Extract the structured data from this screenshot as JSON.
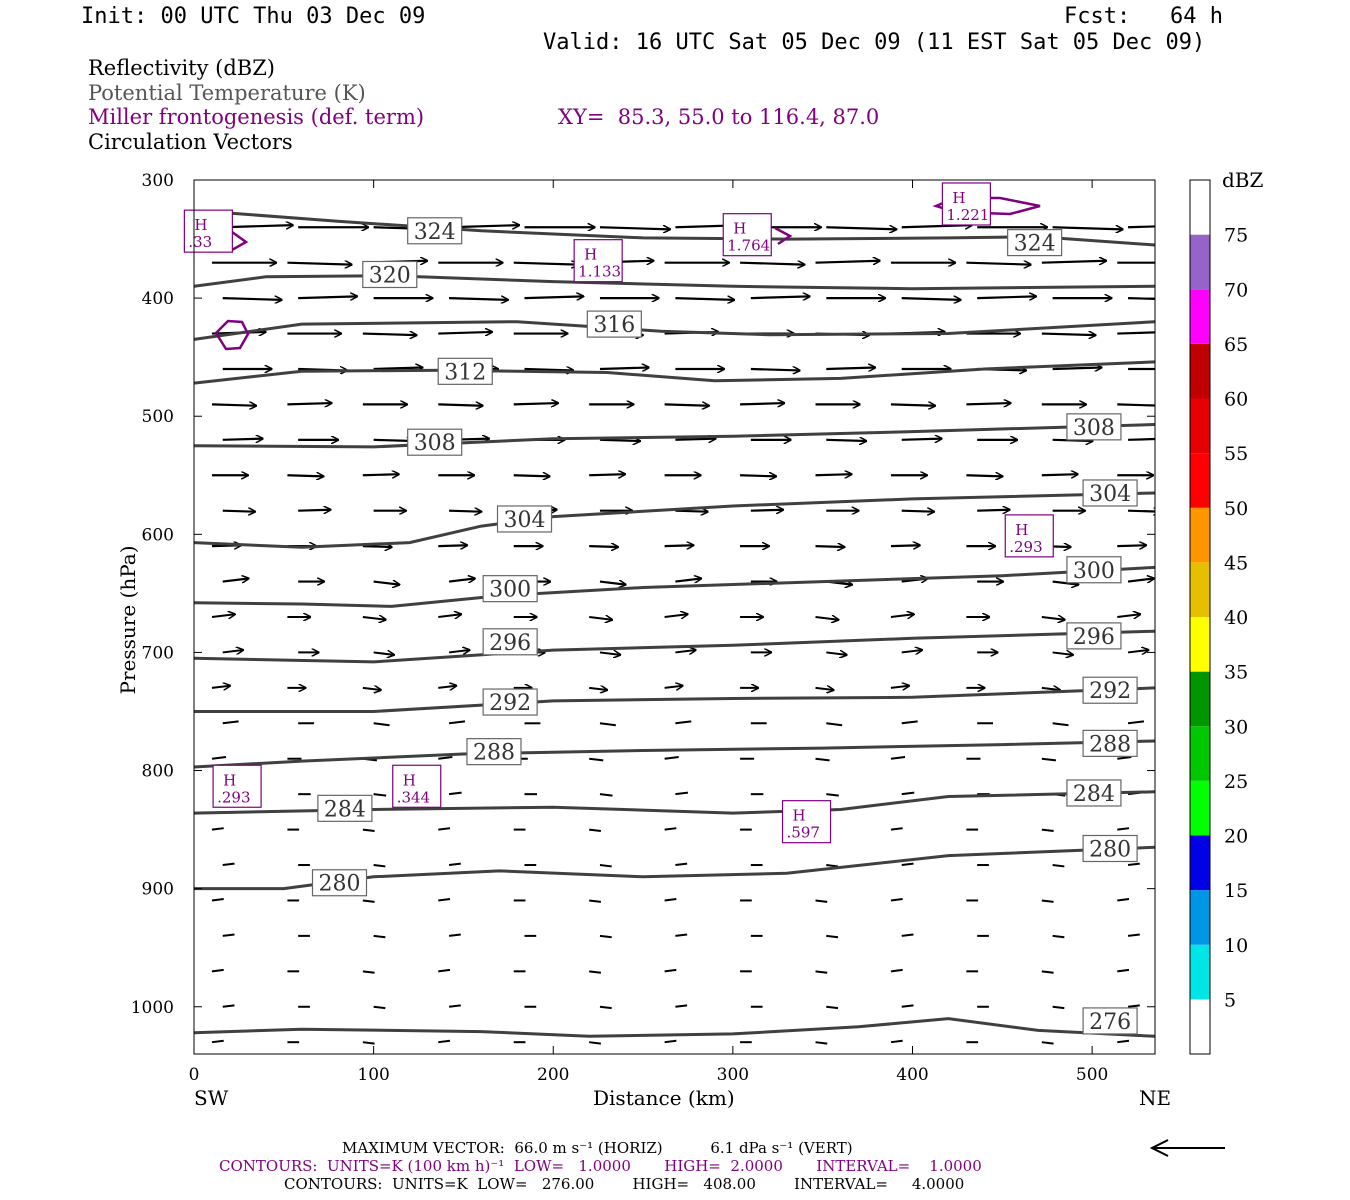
{
  "header": {
    "init": "Init: 00 UTC Thu 03 Dec 09",
    "fcst": "Fcst:   64 h",
    "valid": "Valid: 16 UTC Sat 05 Dec 09 (11 EST Sat 05 Dec 09)"
  },
  "legend": {
    "line1": "Reflectivity (dBZ)",
    "line2": "Potential Temperature (K)",
    "line3": "Miller frontogenesis (def. term)",
    "xy": "XY=  85.3, 55.0 to 116.4, 87.0",
    "line4": "Circulation Vectors"
  },
  "colors": {
    "theta": "#404040",
    "fronto": "#800080",
    "potential_label": "#555555",
    "colorbar": [
      "#00e6e6",
      "#0096e6",
      "#0000e6",
      "#00ff00",
      "#00c800",
      "#009600",
      "#ffff00",
      "#e6c000",
      "#ff9600",
      "#ff0000",
      "#e60000",
      "#c00000",
      "#ff00ff",
      "#9664c8",
      "#ffffff"
    ]
  },
  "footer": {
    "vector": "MAXIMUM VECTOR:  66.0 m s⁻¹ (HORIZ)          6.1 dPa s⁻¹ (VERT)",
    "contours1": "CONTOURS:  UNITS=K (100 km h)⁻¹  LOW=   1.0000       HIGH=  2.0000       INTERVAL=    1.0000",
    "contours2": "CONTOURS:  UNITS=K  LOW=   276.00        HIGH=   408.00        INTERVAL=     4.0000"
  },
  "chart_data": {
    "type": "line",
    "title": "",
    "xlabel": "Distance (km)",
    "ylabel": "Pressure (hPa)",
    "xlim": [
      0,
      535
    ],
    "ylim": [
      1040,
      300
    ],
    "x_ticks": [
      0,
      100,
      200,
      300,
      400,
      500
    ],
    "y_ticks": [
      300,
      400,
      500,
      600,
      700,
      800,
      900,
      1000
    ],
    "x_end_labels": {
      "left": "SW",
      "right": "NE"
    },
    "colorbar": {
      "title": "dBZ",
      "ticks": [
        "5",
        "10",
        "15",
        "20",
        "25",
        "30",
        "35",
        "40",
        "45",
        "50",
        "55",
        "60",
        "65",
        "70",
        "75"
      ]
    },
    "theta_contours": [
      {
        "level": "324",
        "points": [
          [
            0,
            327
          ],
          [
            20,
            328
          ],
          [
            80,
            335
          ],
          [
            160,
            343
          ],
          [
            250,
            349
          ],
          [
            330,
            350
          ],
          [
            420,
            349
          ],
          [
            470,
            348
          ],
          [
            535,
            355
          ]
        ],
        "labels": [
          [
            134,
            343
          ],
          [
            468,
            353
          ]
        ]
      },
      {
        "level": "320",
        "points": [
          [
            0,
            390
          ],
          [
            40,
            382
          ],
          [
            110,
            381
          ],
          [
            200,
            386
          ],
          [
            300,
            390
          ],
          [
            400,
            392
          ],
          [
            535,
            390
          ]
        ],
        "labels": [
          [
            109,
            380
          ]
        ]
      },
      {
        "level": "316",
        "points": [
          [
            0,
            435
          ],
          [
            60,
            422
          ],
          [
            180,
            420
          ],
          [
            260,
            428
          ],
          [
            320,
            431
          ],
          [
            420,
            430
          ],
          [
            535,
            420
          ]
        ],
        "labels": [
          [
            234,
            422
          ]
        ]
      },
      {
        "level": "312",
        "points": [
          [
            0,
            472
          ],
          [
            60,
            462
          ],
          [
            140,
            461
          ],
          [
            230,
            463
          ],
          [
            290,
            470
          ],
          [
            360,
            468
          ],
          [
            440,
            460
          ],
          [
            535,
            454
          ]
        ],
        "labels": [
          [
            151,
            462
          ]
        ]
      },
      {
        "level": "308",
        "points": [
          [
            0,
            525
          ],
          [
            100,
            526
          ],
          [
            200,
            519
          ],
          [
            300,
            517
          ],
          [
            400,
            513
          ],
          [
            535,
            507
          ]
        ],
        "labels": [
          [
            134,
            522
          ],
          [
            501,
            509
          ]
        ]
      },
      {
        "level": "304",
        "points": [
          [
            0,
            607
          ],
          [
            60,
            611
          ],
          [
            120,
            607
          ],
          [
            160,
            593
          ],
          [
            200,
            585
          ],
          [
            300,
            576
          ],
          [
            400,
            570
          ],
          [
            535,
            565
          ]
        ],
        "labels": [
          [
            184,
            587
          ],
          [
            510,
            565
          ]
        ]
      },
      {
        "level": "300",
        "points": [
          [
            0,
            658
          ],
          [
            60,
            659
          ],
          [
            110,
            661
          ],
          [
            170,
            652
          ],
          [
            250,
            645
          ],
          [
            350,
            640
          ],
          [
            450,
            635
          ],
          [
            535,
            628
          ]
        ],
        "labels": [
          [
            176,
            646
          ],
          [
            501,
            630
          ]
        ]
      },
      {
        "level": "296",
        "points": [
          [
            0,
            705
          ],
          [
            100,
            708
          ],
          [
            200,
            698
          ],
          [
            300,
            694
          ],
          [
            400,
            688
          ],
          [
            535,
            682
          ]
        ],
        "labels": [
          [
            176,
            691
          ],
          [
            501,
            686
          ]
        ]
      },
      {
        "level": "292",
        "points": [
          [
            0,
            750
          ],
          [
            100,
            750
          ],
          [
            200,
            741
          ],
          [
            300,
            739
          ],
          [
            400,
            738
          ],
          [
            535,
            730
          ]
        ],
        "labels": [
          [
            176,
            742
          ],
          [
            510,
            732
          ]
        ]
      },
      {
        "level": "288",
        "points": [
          [
            0,
            797
          ],
          [
            60,
            792
          ],
          [
            150,
            786
          ],
          [
            250,
            783
          ],
          [
            350,
            781
          ],
          [
            450,
            778
          ],
          [
            535,
            775
          ]
        ],
        "labels": [
          [
            167,
            784
          ],
          [
            510,
            777
          ]
        ]
      },
      {
        "level": "284",
        "points": [
          [
            0,
            836
          ],
          [
            100,
            833
          ],
          [
            200,
            831
          ],
          [
            300,
            836
          ],
          [
            360,
            833
          ],
          [
            420,
            822
          ],
          [
            535,
            818
          ]
        ],
        "labels": [
          [
            84,
            832
          ],
          [
            501,
            819
          ]
        ]
      },
      {
        "level": "280",
        "points": [
          [
            0,
            900
          ],
          [
            50,
            900
          ],
          [
            100,
            890
          ],
          [
            170,
            885
          ],
          [
            250,
            890
          ],
          [
            330,
            887
          ],
          [
            420,
            872
          ],
          [
            535,
            865
          ]
        ],
        "labels": [
          [
            81,
            895
          ],
          [
            510,
            866
          ]
        ]
      },
      {
        "level": "276",
        "points": [
          [
            0,
            1022
          ],
          [
            60,
            1019
          ],
          [
            160,
            1021
          ],
          [
            220,
            1025
          ],
          [
            300,
            1023
          ],
          [
            370,
            1017
          ],
          [
            420,
            1010
          ],
          [
            470,
            1020
          ],
          [
            535,
            1025
          ]
        ],
        "labels": [
          [
            510,
            1012
          ]
        ]
      }
    ],
    "frontogenesis_highs": [
      {
        "value": "1.221",
        "x": 430,
        "y": 322
      },
      {
        "value": ".33",
        "x": 8,
        "y": 345
      },
      {
        "value": "1.764",
        "x": 308,
        "y": 348
      },
      {
        "value": "1.133",
        "x": 225,
        "y": 370
      },
      {
        "value": ".293",
        "x": 465,
        "y": 603
      },
      {
        "value": ".293",
        "x": 24,
        "y": 815
      },
      {
        "value": ".344",
        "x": 124,
        "y": 815
      },
      {
        "value": ".597",
        "x": 341,
        "y": 845
      }
    ],
    "max_vector": {
      "horiz": "66.0 m s⁻¹",
      "vert": "6.1 dPa s⁻¹"
    }
  }
}
